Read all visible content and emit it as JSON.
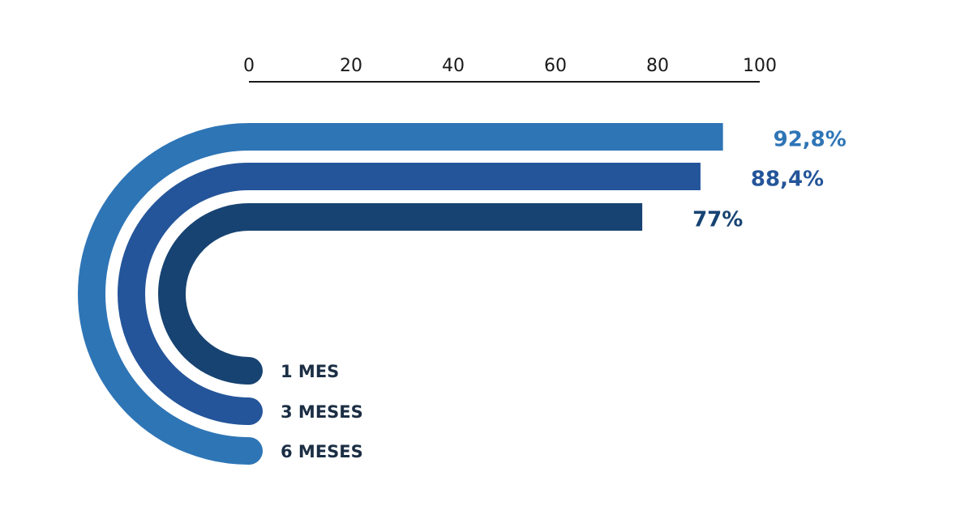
{
  "chart_data": {
    "type": "bar",
    "categories": [
      "6 MESES",
      "3 MESES",
      "1 MES"
    ],
    "values": [
      92.8,
      88.4,
      77
    ],
    "value_labels": [
      "92,8%",
      "88,4%",
      "77%"
    ],
    "colors": [
      "#2e75b6",
      "#24559a",
      "#174372"
    ],
    "xlim": [
      0,
      100
    ],
    "xticks": [
      0,
      20,
      40,
      60,
      80,
      100
    ]
  }
}
